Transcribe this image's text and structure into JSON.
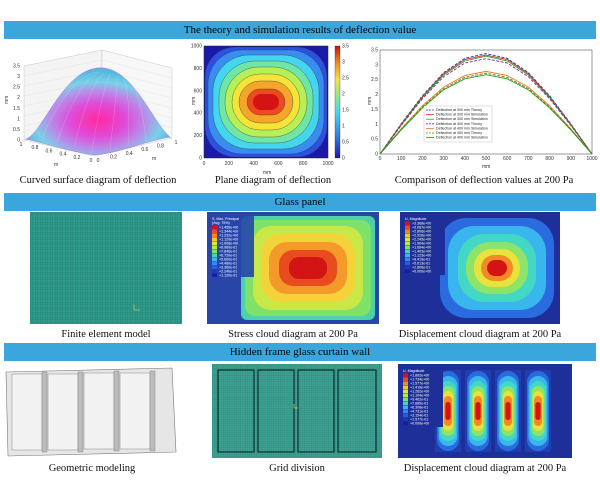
{
  "banners": {
    "theory": "The theory and simulation results of deflection value",
    "glass": "Glass panel",
    "frame": "Hidden frame glass curtain wall"
  },
  "row1": {
    "surface_caption": "Curved surface diagram of deflection",
    "plane_caption": "Plane diagram of deflection",
    "compare_caption": "Comparison of deflection values at 200 Pa",
    "surface_zlabel": "mm",
    "surface_xlabel": "m",
    "surface_ylabel": "m",
    "surface_z_ticks": [
      "0",
      "0.5",
      "1",
      "1.5",
      "2",
      "2.5",
      "3",
      "3.5"
    ],
    "surface_x_ticks": [
      "0",
      "0.2",
      "0.4",
      "0.6",
      "0.8",
      "1"
    ],
    "surface_y_ticks": [
      "0",
      "0.2",
      "0.4",
      "0.6",
      "0.8",
      "1"
    ],
    "plane_xlabel": "mm",
    "plane_ylabel": "mm",
    "plane_x_ticks": [
      "0",
      "200",
      "400",
      "600",
      "800",
      "1000"
    ],
    "plane_y_ticks": [
      "0",
      "200",
      "400",
      "600",
      "800",
      "1000"
    ],
    "plane_colorbar_ticks": [
      "0",
      "0.5",
      "1",
      "1.5",
      "2",
      "2.5",
      "3",
      "3.5"
    ]
  },
  "chart_data": {
    "type": "line",
    "xlabel": "mm",
    "ylabel": "mm",
    "xlim": [
      0,
      1000
    ],
    "ylim": [
      0,
      3.5
    ],
    "x_ticks": [
      "0",
      "100",
      "200",
      "300",
      "400",
      "500",
      "600",
      "700",
      "800",
      "900",
      "1000"
    ],
    "y_ticks": [
      "0",
      "0.5",
      "1",
      "1.5",
      "2",
      "2.5",
      "3",
      "3.5"
    ],
    "x": [
      0,
      100,
      200,
      300,
      400,
      500,
      600,
      700,
      800,
      900,
      1000
    ],
    "series": [
      {
        "name": "Deflection at 300 mm Theory",
        "color": "#1f3fbf",
        "dash": true,
        "values": [
          0,
          1.02,
          1.96,
          2.74,
          3.22,
          3.38,
          3.22,
          2.74,
          1.96,
          1.02,
          0
        ]
      },
      {
        "name": "Deflection at 300 mm Simulation",
        "color": "#d62728",
        "dash": false,
        "values": [
          0,
          1.0,
          1.93,
          2.7,
          3.18,
          3.33,
          3.18,
          2.7,
          1.93,
          1.0,
          0
        ]
      },
      {
        "name": "Deflection at 300 mm Simulation",
        "color": "#2ca02c",
        "dash": false,
        "values": [
          0,
          0.98,
          1.9,
          2.66,
          3.13,
          3.29,
          3.13,
          2.66,
          1.9,
          0.98,
          0
        ]
      },
      {
        "name": "Deflection at 400 mm Theory",
        "color": "#7b2a8c",
        "dash": true,
        "values": [
          0,
          0.96,
          1.86,
          2.6,
          3.06,
          3.21,
          3.06,
          2.6,
          1.86,
          0.96,
          0
        ]
      },
      {
        "name": "Deflection at 400 mm Simulation",
        "color": "#e67e22",
        "dash": false,
        "values": [
          0,
          0.85,
          1.62,
          2.25,
          2.64,
          2.78,
          2.64,
          2.25,
          1.62,
          0.85,
          0
        ]
      },
      {
        "name": "Deflection at 400 mm Theory",
        "color": "#8c6d1f",
        "dash": true,
        "values": [
          0,
          0.83,
          1.58,
          2.2,
          2.58,
          2.72,
          2.58,
          2.2,
          1.58,
          0.83,
          0
        ]
      },
      {
        "name": "Deflection at 400 mm Simulation",
        "color": "#17a017",
        "dash": false,
        "values": [
          0,
          0.81,
          1.55,
          2.16,
          2.53,
          2.67,
          2.53,
          2.16,
          1.55,
          0.81,
          0
        ]
      }
    ],
    "legend_position": "center"
  },
  "row2": {
    "fem_caption": "Finite element model",
    "stress_caption": "Stress cloud diagram at 200 Pa",
    "disp_caption": "Displacement cloud diagram at 200 Pa",
    "stress_legend_title": "S, Max. Principal",
    "stress_legend_sub": "(Avg: 75%)",
    "stress_legend_values": [
      "+1.456e+00",
      "+1.344e+00",
      "+1.232e+00",
      "+1.120e+00",
      "+1.008e+00",
      "+8.960e-01",
      "+7.840e-01",
      "+6.720e-01",
      "+5.600e-01",
      "+4.480e-01",
      "+3.360e-01",
      "+2.240e-01",
      "+1.120e-01"
    ],
    "disp_legend_title": "U, Magnitude",
    "disp_legend_values": [
      "+3.368e+00",
      "+3.087e+00",
      "+2.806e+00",
      "+2.526e+00",
      "+2.245e+00",
      "+1.964e+00",
      "+1.684e+00",
      "+1.403e+00",
      "+1.123e+00",
      "+8.419e-01",
      "+5.613e-01",
      "+2.806e-01",
      "+0.000e+00"
    ]
  },
  "row3": {
    "geo_caption": "Geometric modeling",
    "grid_caption": "Grid division",
    "disp_caption": "Displacement cloud diagram at 200 Pa",
    "disp_legend_title": "U, Magnitude",
    "disp_legend_values": [
      "+1.892e+00",
      "+1.734e+00",
      "+1.577e+00",
      "+1.419e+00",
      "+1.262e+00",
      "+1.104e+00",
      "+9.462e-01",
      "+7.885e-01",
      "+6.308e-01",
      "+4.731e-01",
      "+3.154e-01",
      "+1.577e-01",
      "+0.000e+00"
    ]
  }
}
